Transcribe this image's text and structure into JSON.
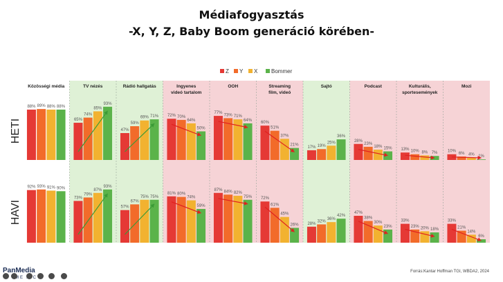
{
  "header": {
    "title": "Médiafogyasztás",
    "subtitle": "-X, Y, Z, Baby Boom generáció körében-"
  },
  "footer": {
    "source": "Forrás:Kantar Hoffman TGI, WBDA2, 2024",
    "logo": "PanMedia",
    "logo_sub": "ME  A  C"
  },
  "colors": {
    "Z": "#e53935",
    "Y": "#f26b2a",
    "X": "#f2b230",
    "Bommer": "#5bb34a",
    "green_panel": "#dff1d6",
    "red_panel": "#f6d3d6",
    "trend_up": "#3a9a36",
    "trend_down": "#e02020"
  },
  "chart_data": {
    "type": "bar",
    "legend": [
      "Z",
      "Y",
      "X",
      "Bommer"
    ],
    "legend_position": "top-right",
    "rows": [
      "HETI",
      "HAVI"
    ],
    "panels": [
      {
        "title": "Közösségi média",
        "bg": "none",
        "trend": "none",
        "heti": [
          88,
          89,
          88,
          88
        ],
        "havi": [
          92,
          93,
          91,
          90
        ]
      },
      {
        "title": "TV nézés",
        "bg": "green",
        "trend": "up",
        "heti": [
          65,
          74,
          85,
          93
        ],
        "havi": [
          73,
          79,
          87,
          93
        ]
      },
      {
        "title": "Rádió hallgatás",
        "bg": "green",
        "trend": "up",
        "heti": [
          47,
          59,
          69,
          71
        ],
        "havi": [
          57,
          67,
          75,
          75
        ]
      },
      {
        "title": "Ingyenes videó tartalom",
        "bg": "red",
        "trend": "down",
        "heti": [
          72,
          70,
          64,
          50
        ],
        "havi": [
          81,
          80,
          74,
          59
        ]
      },
      {
        "title": "OOH",
        "bg": "red",
        "trend": "down",
        "heti": [
          77,
          73,
          71,
          64
        ],
        "havi": [
          87,
          84,
          82,
          75
        ]
      },
      {
        "title": "Streaming film, videó",
        "bg": "red",
        "trend": "down",
        "heti": [
          60,
          51,
          37,
          21
        ],
        "havi": [
          72,
          61,
          45,
          26
        ]
      },
      {
        "title": "Sajtó",
        "bg": "green",
        "trend": "none",
        "heti": [
          17,
          19,
          25,
          36
        ],
        "havi": [
          28,
          32,
          36,
          42
        ]
      },
      {
        "title": "Podcast",
        "bg": "red",
        "trend": "down",
        "heti": [
          28,
          23,
          18,
          15
        ],
        "havi": [
          47,
          38,
          30,
          23
        ]
      },
      {
        "title": "Kulturális, sportesemények",
        "bg": "red",
        "trend": "down",
        "heti": [
          13,
          10,
          8,
          7
        ],
        "havi": [
          33,
          23,
          20,
          18
        ]
      },
      {
        "title": "Mozi",
        "bg": "red",
        "trend": "down",
        "heti": [
          10,
          6,
          4,
          1
        ],
        "havi": [
          33,
          21,
          14,
          6
        ]
      }
    ]
  }
}
